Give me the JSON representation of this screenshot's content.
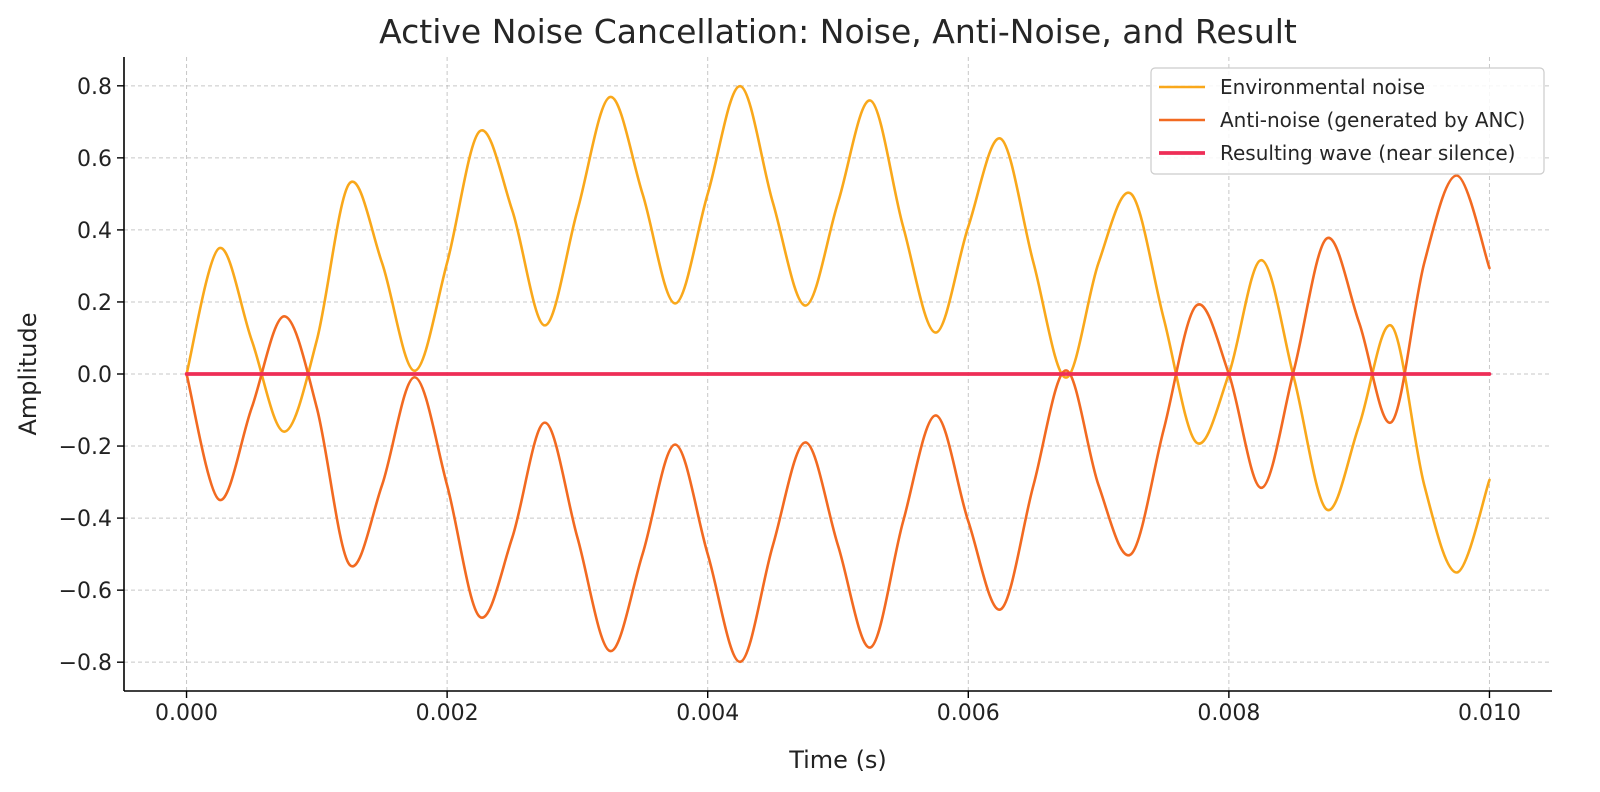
{
  "chart_data": {
    "type": "line",
    "title": "Active Noise Cancellation: Noise, Anti-Noise, and Result",
    "xlabel": "Time (s)",
    "ylabel": "Amplitude",
    "xlim": [
      -0.00048,
      0.01048
    ],
    "ylim": [
      -0.88,
      0.88
    ],
    "x_ticks": [
      0.0,
      0.002,
      0.004,
      0.006,
      0.008,
      0.01
    ],
    "x_tick_labels": [
      "0.000",
      "0.002",
      "0.004",
      "0.006",
      "0.008",
      "0.010"
    ],
    "y_ticks": [
      -0.8,
      -0.6,
      -0.4,
      -0.2,
      0.0,
      0.2,
      0.4,
      0.6,
      0.8
    ],
    "y_tick_labels": [
      "−0.8",
      "−0.6",
      "−0.4",
      "−0.2",
      "0.0",
      "0.2",
      "0.4",
      "0.6",
      "0.8"
    ],
    "grid": true,
    "legend_position": "top-right",
    "x": [
      0.0,
      0.00025,
      0.0005,
      0.00075,
      0.001,
      0.00125,
      0.0015,
      0.00175,
      0.002,
      0.00225,
      0.0025,
      0.00275,
      0.003,
      0.00325,
      0.0035,
      0.00375,
      0.004,
      0.00425,
      0.0045,
      0.00475,
      0.005,
      0.00525,
      0.0055,
      0.00575,
      0.006,
      0.00625,
      0.0065,
      0.00675,
      0.007,
      0.00725,
      0.0075,
      0.00775,
      0.008,
      0.00825,
      0.0085,
      0.00875,
      0.009,
      0.00925,
      0.0095,
      0.00975,
      0.01
    ],
    "series": [
      {
        "name": "Environmental noise",
        "color": "#F9A81B",
        "stroke_width": 2.6,
        "values": [
          0.0,
          0.349,
          0.094,
          -0.16,
          0.094,
          0.529,
          0.309,
          0.009,
          0.309,
          0.674,
          0.454,
          0.135,
          0.454,
          0.769,
          0.5,
          0.196,
          0.5,
          0.799,
          0.476,
          0.19,
          0.476,
          0.759,
          0.409,
          0.115,
          0.409,
          0.653,
          0.309,
          -0.01,
          0.309,
          0.5,
          0.154,
          -0.19,
          0.0,
          0.316,
          -0.012,
          -0.376,
          -0.142,
          0.133,
          -0.309,
          -0.551,
          -0.294
        ]
      },
      {
        "name": "Anti-noise (generated by ANC)",
        "color": "#F26A21",
        "stroke_width": 2.6,
        "values": [
          0.0,
          -0.349,
          -0.094,
          0.16,
          -0.094,
          -0.529,
          -0.309,
          -0.009,
          -0.309,
          -0.674,
          -0.454,
          -0.135,
          -0.454,
          -0.769,
          -0.5,
          -0.196,
          -0.5,
          -0.799,
          -0.476,
          -0.19,
          -0.476,
          -0.759,
          -0.409,
          -0.115,
          -0.409,
          -0.653,
          -0.309,
          0.01,
          -0.309,
          -0.5,
          -0.154,
          0.19,
          0.0,
          -0.316,
          0.012,
          0.376,
          0.142,
          -0.133,
          0.309,
          0.551,
          0.294
        ]
      },
      {
        "name": "Resulting wave (near silence)",
        "color": "#EE2E57",
        "stroke_width": 3.8,
        "values": [
          0.0,
          0.0,
          0.0,
          0.0,
          0.0,
          0.0,
          0.0,
          0.0,
          0.0,
          0.0,
          0.0,
          0.0,
          0.0,
          0.0,
          0.0,
          0.0,
          0.0,
          0.0,
          0.0,
          0.0,
          0.0,
          0.0,
          0.0,
          0.0,
          0.0,
          0.0,
          0.0,
          0.0,
          0.0,
          0.0,
          0.0,
          0.0,
          0.0,
          0.0,
          0.0,
          0.0,
          0.0,
          0.0,
          0.0,
          0.0,
          0.0
        ]
      }
    ]
  }
}
